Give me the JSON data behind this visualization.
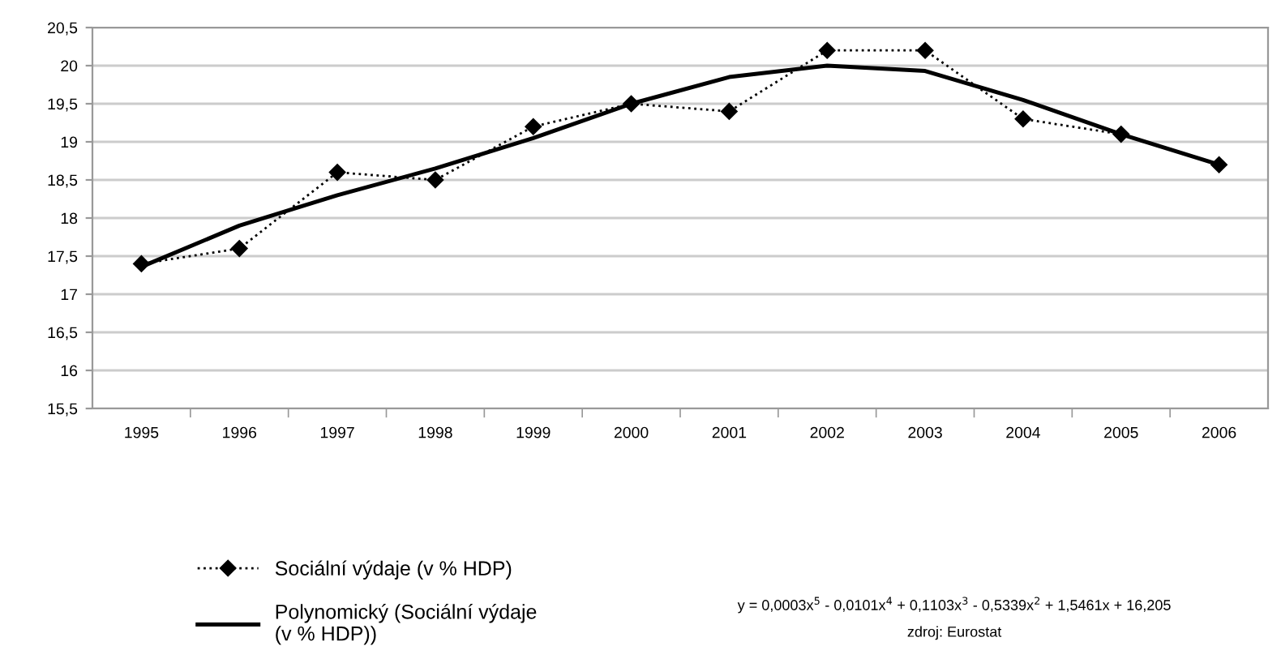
{
  "chart_data": {
    "type": "line",
    "categories": [
      "1995",
      "1996",
      "1997",
      "1998",
      "1999",
      "2000",
      "2001",
      "2002",
      "2003",
      "2004",
      "2005",
      "2006"
    ],
    "series": [
      {
        "name": "Sociální výdaje (v % HDP)",
        "color": "#000000",
        "values": [
          17.4,
          17.6,
          18.6,
          18.5,
          19.2,
          19.5,
          19.4,
          20.2,
          20.2,
          19.3,
          19.1,
          18.7
        ],
        "marker": "diamond",
        "line_style": "dotted"
      },
      {
        "name": "Polynomický (Sociální výdaje\n(v % HDP))",
        "color": "#000000",
        "values": [
          17.36,
          17.9,
          18.3,
          18.65,
          19.05,
          19.5,
          19.85,
          20.0,
          19.93,
          19.55,
          19.1,
          18.7
        ],
        "marker": "none",
        "line_style": "solid"
      }
    ],
    "ylim": [
      15.5,
      20.5
    ],
    "yticks": [
      {
        "value": 15.5,
        "label": "15,5"
      },
      16,
      {
        "value": 16.5,
        "label": "16,5"
      },
      17,
      {
        "value": 17.5,
        "label": "17,5"
      },
      18,
      {
        "value": 18.5,
        "label": "18,5"
      },
      19,
      {
        "value": 19.5,
        "label": "19,5"
      },
      20,
      {
        "value": 20.5,
        "label": "20,5"
      }
    ],
    "grid": "y",
    "legend": "bottom left",
    "annotations": [
      "y = 0,0003x$^{5}$ - 0,0101x$^{4}$ + 0,1103x$^{3}$ - 0,5339x$^{2}$ + 1,5461x + 16,205",
      "zdroj: Eurostat"
    ]
  }
}
